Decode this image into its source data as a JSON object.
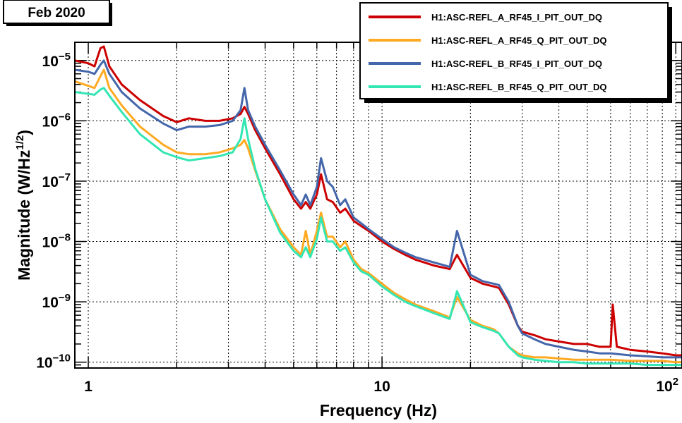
{
  "date_badge": "Feb 2020",
  "chart_data": {
    "type": "line",
    "xlabel": "Frequency (Hz)",
    "ylabel_main": "Magnitude (W/Hz",
    "ylabel_sup": "1/2",
    "ylabel_close": ")",
    "x_scale": "log",
    "y_scale": "log",
    "xlim": [
      0.9,
      105
    ],
    "ylim": [
      8e-11,
      2e-05
    ],
    "grid": true,
    "legend_position": "top-right",
    "x_tick_labels": [
      {
        "value": 1,
        "base": "1",
        "sup": ""
      },
      {
        "value": 10,
        "base": "10",
        "sup": ""
      },
      {
        "value": 100,
        "base": "10",
        "sup": "2"
      }
    ],
    "y_tick_labels": [
      {
        "value": 1e-05,
        "base": "10",
        "sup": "−5"
      },
      {
        "value": 1e-06,
        "base": "10",
        "sup": "−6"
      },
      {
        "value": 1e-07,
        "base": "10",
        "sup": "−7"
      },
      {
        "value": 1e-08,
        "base": "10",
        "sup": "−8"
      },
      {
        "value": 1e-09,
        "base": "10",
        "sup": "−9"
      },
      {
        "value": 1e-10,
        "base": "10",
        "sup": "−10"
      }
    ],
    "series": [
      {
        "name": "H1:ASC-REFL_A_RF45_I_PIT_OUT_DQ",
        "color": "#cc0000",
        "x": [
          0.9,
          1.0,
          1.05,
          1.1,
          1.13,
          1.18,
          1.3,
          1.5,
          1.8,
          2.0,
          2.2,
          2.5,
          2.8,
          3.1,
          3.3,
          3.4,
          3.5,
          3.7,
          4.0,
          4.5,
          5.0,
          5.3,
          5.5,
          5.7,
          6.0,
          6.2,
          6.5,
          6.8,
          7.2,
          7.5,
          8.0,
          8.5,
          9.0,
          10,
          11,
          12,
          13,
          15,
          17,
          18,
          20,
          22,
          24,
          25,
          27,
          29,
          30,
          33,
          36,
          40,
          45,
          50,
          55,
          60,
          61,
          63,
          70,
          80,
          90,
          100,
          105
        ],
        "y": [
          1e-05,
          9e-06,
          8e-06,
          1.6e-05,
          1.7e-05,
          8e-06,
          4e-06,
          2.2e-06,
          1.2e-06,
          9.5e-07,
          1.1e-06,
          1e-06,
          1e-06,
          1.1e-06,
          1.3e-06,
          1.7e-06,
          1.3e-06,
          7e-07,
          3.5e-07,
          1.3e-07,
          5e-08,
          3.5e-08,
          4.5e-08,
          3.5e-08,
          6e-08,
          1.3e-07,
          5e-08,
          4.5e-08,
          3e-08,
          3.5e-08,
          2.2e-08,
          1.8e-08,
          1.5e-08,
          1e-08,
          7.5e-09,
          6e-09,
          5e-09,
          4e-09,
          3.5e-09,
          6e-09,
          2.5e-09,
          2e-09,
          1.8e-09,
          1.7e-09,
          9e-10,
          4e-10,
          3.2e-10,
          2.8e-10,
          2.4e-10,
          2.2e-10,
          2e-10,
          2e-10,
          1.8e-10,
          1.8e-10,
          9e-10,
          1.8e-10,
          1.6e-10,
          1.5e-10,
          1.4e-10,
          1.3e-10,
          1.3e-10
        ]
      },
      {
        "name": "H1:ASC-REFL_A_RF45_Q_PIT_OUT_DQ",
        "color": "#ffaa22",
        "x": [
          0.9,
          1.0,
          1.05,
          1.1,
          1.13,
          1.18,
          1.3,
          1.5,
          1.8,
          2.0,
          2.2,
          2.5,
          2.8,
          3.1,
          3.3,
          3.4,
          3.5,
          3.7,
          4.0,
          4.5,
          5.0,
          5.3,
          5.5,
          5.7,
          6.0,
          6.2,
          6.5,
          6.8,
          7.2,
          7.5,
          8.0,
          8.5,
          9.0,
          10,
          11,
          12,
          13,
          15,
          17,
          18,
          20,
          22,
          24,
          25,
          27,
          29,
          30,
          33,
          36,
          40,
          45,
          50,
          55,
          60,
          70,
          80,
          90,
          100,
          105
        ],
        "y": [
          4.5e-06,
          3.8e-06,
          3.5e-06,
          5.5e-06,
          7e-06,
          3.5e-06,
          1.8e-06,
          8e-07,
          4e-07,
          3e-07,
          2.8e-07,
          2.8e-07,
          3e-07,
          3.5e-07,
          4e-07,
          4.8e-07,
          3.5e-07,
          1.5e-07,
          5e-08,
          1.6e-08,
          8e-09,
          6e-09,
          1.5e-08,
          6e-09,
          1.5e-08,
          3e-08,
          1.2e-08,
          1.2e-08,
          8e-09,
          1e-08,
          5e-09,
          3.5e-09,
          3e-09,
          2e-09,
          1.4e-09,
          1.1e-09,
          9e-10,
          7e-10,
          5.5e-10,
          1.2e-09,
          5e-10,
          4e-10,
          3.5e-10,
          3e-10,
          1.8e-10,
          1.4e-10,
          1.3e-10,
          1.2e-10,
          1.2e-10,
          1.15e-10,
          1.1e-10,
          1.1e-10,
          1.1e-10,
          1.1e-10,
          1.05e-10,
          1.05e-10,
          1.05e-10,
          1e-10,
          1e-10
        ]
      },
      {
        "name": "H1:ASC-REFL_B_RF45_I_PIT_OUT_DQ",
        "color": "#4466aa",
        "x": [
          0.9,
          1.0,
          1.05,
          1.1,
          1.13,
          1.18,
          1.3,
          1.5,
          1.8,
          2.0,
          2.2,
          2.5,
          2.8,
          3.1,
          3.3,
          3.4,
          3.5,
          3.7,
          4.0,
          4.5,
          5.0,
          5.3,
          5.5,
          5.7,
          6.0,
          6.2,
          6.5,
          6.8,
          7.2,
          7.5,
          8.0,
          8.5,
          9.0,
          10,
          11,
          12,
          13,
          15,
          17,
          18,
          20,
          22,
          24,
          25,
          27,
          29,
          30,
          33,
          36,
          40,
          45,
          50,
          55,
          60,
          70,
          80,
          90,
          100,
          105
        ],
        "y": [
          7e-06,
          6.5e-06,
          6e-06,
          8.5e-06,
          1e-05,
          6e-06,
          3e-06,
          1.6e-06,
          9e-07,
          7e-07,
          8e-07,
          8e-07,
          8.5e-07,
          1e-06,
          1.5e-06,
          3.5e-06,
          1.5e-06,
          8e-07,
          4e-07,
          1.5e-07,
          6e-08,
          4e-08,
          6e-08,
          4e-08,
          8e-08,
          2.4e-07,
          1e-07,
          8e-08,
          4e-08,
          5e-08,
          2.5e-08,
          2e-08,
          1.6e-08,
          1.1e-08,
          8e-09,
          6.5e-09,
          5.5e-09,
          4.5e-09,
          3.8e-09,
          1.5e-08,
          2.8e-09,
          2.2e-09,
          2e-09,
          1.9e-09,
          1e-09,
          4e-10,
          3e-10,
          2.4e-10,
          2e-10,
          1.8e-10,
          1.6e-10,
          1.5e-10,
          1.4e-10,
          1.4e-10,
          1.3e-10,
          1.25e-10,
          1.2e-10,
          1.2e-10,
          1.2e-10
        ]
      },
      {
        "name": "H1:ASC-REFL_B_RF45_Q_PIT_OUT_DQ",
        "color": "#33e6b3",
        "x": [
          0.9,
          1.0,
          1.05,
          1.1,
          1.13,
          1.18,
          1.3,
          1.5,
          1.8,
          2.0,
          2.2,
          2.5,
          2.8,
          3.1,
          3.3,
          3.4,
          3.5,
          3.7,
          4.0,
          4.5,
          5.0,
          5.3,
          5.5,
          5.7,
          6.0,
          6.2,
          6.5,
          6.8,
          7.2,
          7.5,
          8.0,
          8.5,
          9.0,
          10,
          11,
          12,
          13,
          15,
          17,
          18,
          20,
          22,
          24,
          25,
          27,
          29,
          30,
          33,
          36,
          40,
          45,
          50,
          55,
          60,
          70,
          80,
          90,
          100,
          105
        ],
        "y": [
          3e-06,
          2.8e-06,
          2.7e-06,
          3.3e-06,
          3.5e-06,
          2.6e-06,
          1.4e-06,
          6e-07,
          3e-07,
          2.5e-07,
          2.2e-07,
          2.4e-07,
          2.6e-07,
          3e-07,
          5e-07,
          1.1e-06,
          5e-07,
          1.6e-07,
          5e-08,
          1.4e-08,
          7e-09,
          5.5e-09,
          8e-09,
          5.5e-09,
          1.1e-08,
          2.5e-08,
          1e-08,
          1e-08,
          7e-09,
          8e-09,
          4.5e-09,
          3.2e-09,
          2.8e-09,
          1.8e-09,
          1.3e-09,
          1e-09,
          8.5e-10,
          6.5e-10,
          5.2e-10,
          1.5e-09,
          4.6e-10,
          3.8e-10,
          3.3e-10,
          3e-10,
          1.8e-10,
          1.3e-10,
          1.2e-10,
          1.1e-10,
          1.05e-10,
          1e-10,
          1e-10,
          9.5e-11,
          9.5e-11,
          9.5e-11,
          9.5e-11,
          9e-11,
          9e-11,
          9e-11,
          9e-11
        ]
      }
    ]
  }
}
